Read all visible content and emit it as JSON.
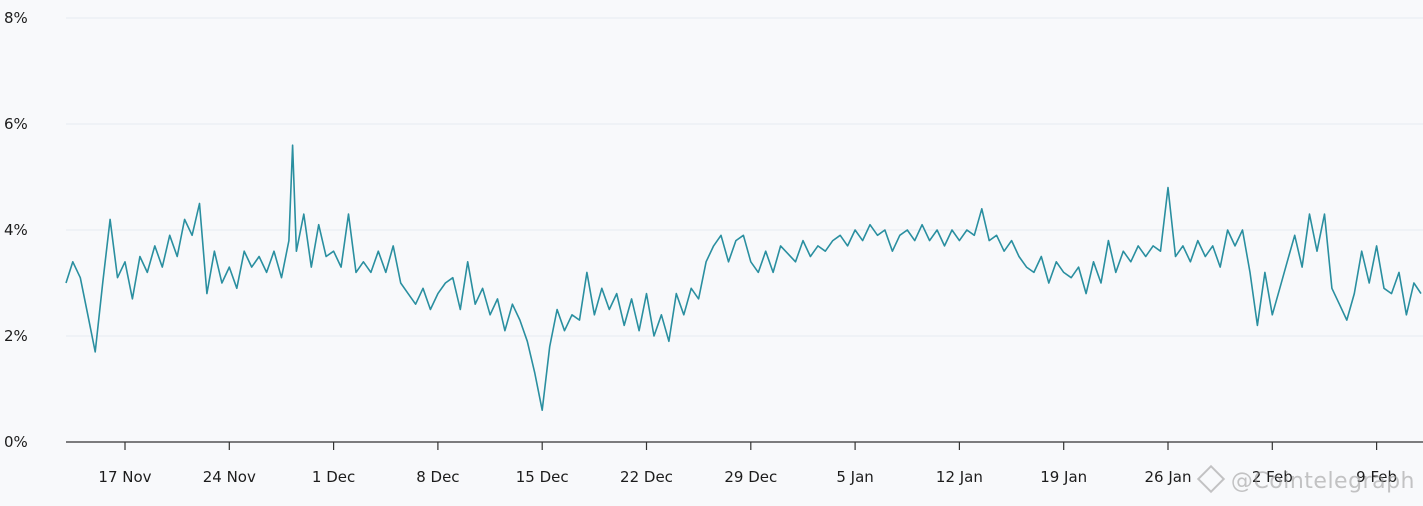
{
  "colors": {
    "line": "#2a8fa0",
    "grid": "#e6eaf2",
    "axis": "#333333",
    "background": "#f8f9fb"
  },
  "watermark": {
    "text": "@Cointelegraph",
    "icon": "cointelegraph-logo-icon"
  },
  "chart_data": {
    "type": "line",
    "title": "",
    "xlabel": "",
    "ylabel": "",
    "ylim": [
      0,
      8
    ],
    "y_unit": "%",
    "y_ticks": [
      "0%",
      "2%",
      "4%",
      "6%",
      "8%"
    ],
    "y_tick_values": [
      0,
      2,
      4,
      6,
      8
    ],
    "x_tick_labels": [
      "17 Nov",
      "24 Nov",
      "1 Dec",
      "8 Dec",
      "15 Dec",
      "22 Dec",
      "29 Dec",
      "5 Jan",
      "12 Jan",
      "19 Jan",
      "26 Jan",
      "2 Feb",
      "9 Feb"
    ],
    "x_range_days": [
      "2024-11-13",
      "2025-02-12"
    ],
    "grid": true,
    "legend": "none",
    "series": [
      {
        "points": [
          [
            "2024-11-13",
            3.0
          ],
          [
            "2024-11-13T12",
            3.4
          ],
          [
            "2024-11-14",
            3.1
          ],
          [
            "2024-11-14T12",
            2.4
          ],
          [
            "2024-11-15",
            1.7
          ],
          [
            "2024-11-15T12",
            3.0
          ],
          [
            "2024-11-16",
            4.2
          ],
          [
            "2024-11-16T12",
            3.1
          ],
          [
            "2024-11-17",
            3.4
          ],
          [
            "2024-11-17T12",
            2.7
          ],
          [
            "2024-11-18",
            3.5
          ],
          [
            "2024-11-18T12",
            3.2
          ],
          [
            "2024-11-19",
            3.7
          ],
          [
            "2024-11-19T12",
            3.3
          ],
          [
            "2024-11-20",
            3.9
          ],
          [
            "2024-11-20T12",
            3.5
          ],
          [
            "2024-11-21",
            4.2
          ],
          [
            "2024-11-21T12",
            3.9
          ],
          [
            "2024-11-22",
            4.5
          ],
          [
            "2024-11-22T12",
            2.8
          ],
          [
            "2024-11-23",
            3.6
          ],
          [
            "2024-11-23T12",
            3.0
          ],
          [
            "2024-11-24",
            3.3
          ],
          [
            "2024-11-24T12",
            2.9
          ],
          [
            "2024-11-25",
            3.6
          ],
          [
            "2024-11-25T12",
            3.3
          ],
          [
            "2024-11-26",
            3.5
          ],
          [
            "2024-11-26T12",
            3.2
          ],
          [
            "2024-11-27",
            3.6
          ],
          [
            "2024-11-27T12",
            3.1
          ],
          [
            "2024-11-28",
            3.8
          ],
          [
            "2024-11-28T06",
            5.6
          ],
          [
            "2024-11-28T12",
            3.6
          ],
          [
            "2024-11-29",
            4.3
          ],
          [
            "2024-11-29T12",
            3.3
          ],
          [
            "2024-11-30",
            4.1
          ],
          [
            "2024-11-30T12",
            3.5
          ],
          [
            "2024-12-01",
            3.6
          ],
          [
            "2024-12-01T12",
            3.3
          ],
          [
            "2024-12-02",
            4.3
          ],
          [
            "2024-12-02T12",
            3.2
          ],
          [
            "2024-12-03",
            3.4
          ],
          [
            "2024-12-03T12",
            3.2
          ],
          [
            "2024-12-04",
            3.6
          ],
          [
            "2024-12-04T12",
            3.2
          ],
          [
            "2024-12-05",
            3.7
          ],
          [
            "2024-12-05T12",
            3.0
          ],
          [
            "2024-12-06",
            2.8
          ],
          [
            "2024-12-06T12",
            2.6
          ],
          [
            "2024-12-07",
            2.9
          ],
          [
            "2024-12-07T12",
            2.5
          ],
          [
            "2024-12-08",
            2.8
          ],
          [
            "2024-12-08T12",
            3.0
          ],
          [
            "2024-12-09",
            3.1
          ],
          [
            "2024-12-09T12",
            2.5
          ],
          [
            "2024-12-10",
            3.4
          ],
          [
            "2024-12-10T12",
            2.6
          ],
          [
            "2024-12-11",
            2.9
          ],
          [
            "2024-12-11T12",
            2.4
          ],
          [
            "2024-12-12",
            2.7
          ],
          [
            "2024-12-12T12",
            2.1
          ],
          [
            "2024-12-13",
            2.6
          ],
          [
            "2024-12-13T12",
            2.3
          ],
          [
            "2024-12-14",
            1.9
          ],
          [
            "2024-12-14T12",
            1.3
          ],
          [
            "2024-12-15",
            0.6
          ],
          [
            "2024-12-15T12",
            1.8
          ],
          [
            "2024-12-16",
            2.5
          ],
          [
            "2024-12-16T12",
            2.1
          ],
          [
            "2024-12-17",
            2.4
          ],
          [
            "2024-12-17T12",
            2.3
          ],
          [
            "2024-12-18",
            3.2
          ],
          [
            "2024-12-18T12",
            2.4
          ],
          [
            "2024-12-19",
            2.9
          ],
          [
            "2024-12-19T12",
            2.5
          ],
          [
            "2024-12-20",
            2.8
          ],
          [
            "2024-12-20T12",
            2.2
          ],
          [
            "2024-12-21",
            2.7
          ],
          [
            "2024-12-21T12",
            2.1
          ],
          [
            "2024-12-22",
            2.8
          ],
          [
            "2024-12-22T12",
            2.0
          ],
          [
            "2024-12-23",
            2.4
          ],
          [
            "2024-12-23T12",
            1.9
          ],
          [
            "2024-12-24",
            2.8
          ],
          [
            "2024-12-24T12",
            2.4
          ],
          [
            "2024-12-25",
            2.9
          ],
          [
            "2024-12-25T12",
            2.7
          ],
          [
            "2024-12-26",
            3.4
          ],
          [
            "2024-12-26T12",
            3.7
          ],
          [
            "2024-12-27",
            3.9
          ],
          [
            "2024-12-27T12",
            3.4
          ],
          [
            "2024-12-28",
            3.8
          ],
          [
            "2024-12-28T12",
            3.9
          ],
          [
            "2024-12-29",
            3.4
          ],
          [
            "2024-12-29T12",
            3.2
          ],
          [
            "2024-12-30",
            3.6
          ],
          [
            "2024-12-30T12",
            3.2
          ],
          [
            "2024-12-31",
            3.7
          ],
          [
            "2025-01-01",
            3.4
          ],
          [
            "2025-01-01T12",
            3.8
          ],
          [
            "2025-01-02",
            3.5
          ],
          [
            "2025-01-02T12",
            3.7
          ],
          [
            "2025-01-03",
            3.6
          ],
          [
            "2025-01-03T12",
            3.8
          ],
          [
            "2025-01-04",
            3.9
          ],
          [
            "2025-01-04T12",
            3.7
          ],
          [
            "2025-01-05",
            4.0
          ],
          [
            "2025-01-05T12",
            3.8
          ],
          [
            "2025-01-06",
            4.1
          ],
          [
            "2025-01-06T12",
            3.9
          ],
          [
            "2025-01-07",
            4.0
          ],
          [
            "2025-01-07T12",
            3.6
          ],
          [
            "2025-01-08",
            3.9
          ],
          [
            "2025-01-08T12",
            4.0
          ],
          [
            "2025-01-09",
            3.8
          ],
          [
            "2025-01-09T12",
            4.1
          ],
          [
            "2025-01-10",
            3.8
          ],
          [
            "2025-01-10T12",
            4.0
          ],
          [
            "2025-01-11",
            3.7
          ],
          [
            "2025-01-11T12",
            4.0
          ],
          [
            "2025-01-12",
            3.8
          ],
          [
            "2025-01-12T12",
            4.0
          ],
          [
            "2025-01-13",
            3.9
          ],
          [
            "2025-01-13T12",
            4.4
          ],
          [
            "2025-01-14",
            3.8
          ],
          [
            "2025-01-14T12",
            3.9
          ],
          [
            "2025-01-15",
            3.6
          ],
          [
            "2025-01-15T12",
            3.8
          ],
          [
            "2025-01-16",
            3.5
          ],
          [
            "2025-01-16T12",
            3.3
          ],
          [
            "2025-01-17",
            3.2
          ],
          [
            "2025-01-17T12",
            3.5
          ],
          [
            "2025-01-18",
            3.0
          ],
          [
            "2025-01-18T12",
            3.4
          ],
          [
            "2025-01-19",
            3.2
          ],
          [
            "2025-01-19T12",
            3.1
          ],
          [
            "2025-01-20",
            3.3
          ],
          [
            "2025-01-20T12",
            2.8
          ],
          [
            "2025-01-21",
            3.4
          ],
          [
            "2025-01-21T12",
            3.0
          ],
          [
            "2025-01-22",
            3.8
          ],
          [
            "2025-01-22T12",
            3.2
          ],
          [
            "2025-01-23",
            3.6
          ],
          [
            "2025-01-23T12",
            3.4
          ],
          [
            "2025-01-24",
            3.7
          ],
          [
            "2025-01-24T12",
            3.5
          ],
          [
            "2025-01-25",
            3.7
          ],
          [
            "2025-01-25T12",
            3.6
          ],
          [
            "2025-01-26",
            4.8
          ],
          [
            "2025-01-26T12",
            3.5
          ],
          [
            "2025-01-27",
            3.7
          ],
          [
            "2025-01-27T12",
            3.4
          ],
          [
            "2025-01-28",
            3.8
          ],
          [
            "2025-01-28T12",
            3.5
          ],
          [
            "2025-01-29",
            3.7
          ],
          [
            "2025-01-29T12",
            3.3
          ],
          [
            "2025-01-30",
            4.0
          ],
          [
            "2025-01-30T12",
            3.7
          ],
          [
            "2025-01-31",
            4.0
          ],
          [
            "2025-01-31T12",
            3.2
          ],
          [
            "2025-02-01",
            2.2
          ],
          [
            "2025-02-01T12",
            3.2
          ],
          [
            "2025-02-02",
            2.4
          ],
          [
            "2025-02-02T12",
            2.9
          ],
          [
            "2025-02-03",
            3.4
          ],
          [
            "2025-02-03T12",
            3.9
          ],
          [
            "2025-02-04",
            3.3
          ],
          [
            "2025-02-04T12",
            4.3
          ],
          [
            "2025-02-05",
            3.6
          ],
          [
            "2025-02-05T12",
            4.3
          ],
          [
            "2025-02-06",
            2.9
          ],
          [
            "2025-02-06T12",
            2.6
          ],
          [
            "2025-02-07",
            2.3
          ],
          [
            "2025-02-07T12",
            2.8
          ],
          [
            "2025-02-08",
            3.6
          ],
          [
            "2025-02-08T12",
            3.0
          ],
          [
            "2025-02-09",
            3.7
          ],
          [
            "2025-02-09T12",
            2.9
          ],
          [
            "2025-02-10",
            2.8
          ],
          [
            "2025-02-10T12",
            3.2
          ],
          [
            "2025-02-11",
            2.4
          ],
          [
            "2025-02-11T12",
            3.0
          ],
          [
            "2025-02-12",
            2.8
          ]
        ]
      }
    ]
  }
}
